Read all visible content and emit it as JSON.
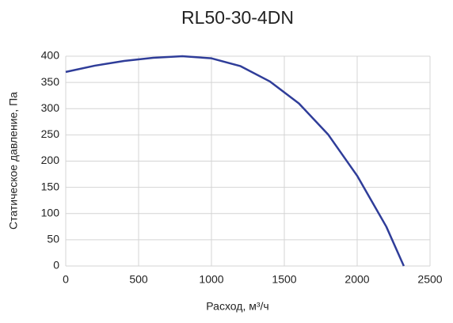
{
  "chart_data": {
    "type": "line",
    "title": "RL50-30-4DN",
    "x_label": "Расход, м³/ч",
    "y_label": "Статическое давление, Па",
    "x": [
      0,
      200,
      400,
      600,
      800,
      1000,
      1200,
      1400,
      1600,
      1800,
      2000,
      2200,
      2320
    ],
    "series": [
      {
        "color": "#2f3d99",
        "values": [
          370,
          382,
          391,
          397,
          400,
          396,
          381,
          352,
          310,
          251,
          172,
          75,
          0
        ]
      }
    ],
    "xlim": [
      0,
      2500
    ],
    "xticks": [
      0,
      500,
      1000,
      1500,
      2000,
      2500
    ],
    "ylim": [
      0,
      400
    ],
    "yticks": [
      0,
      50,
      100,
      150,
      200,
      250,
      300,
      350,
      400
    ],
    "grid": true
  }
}
